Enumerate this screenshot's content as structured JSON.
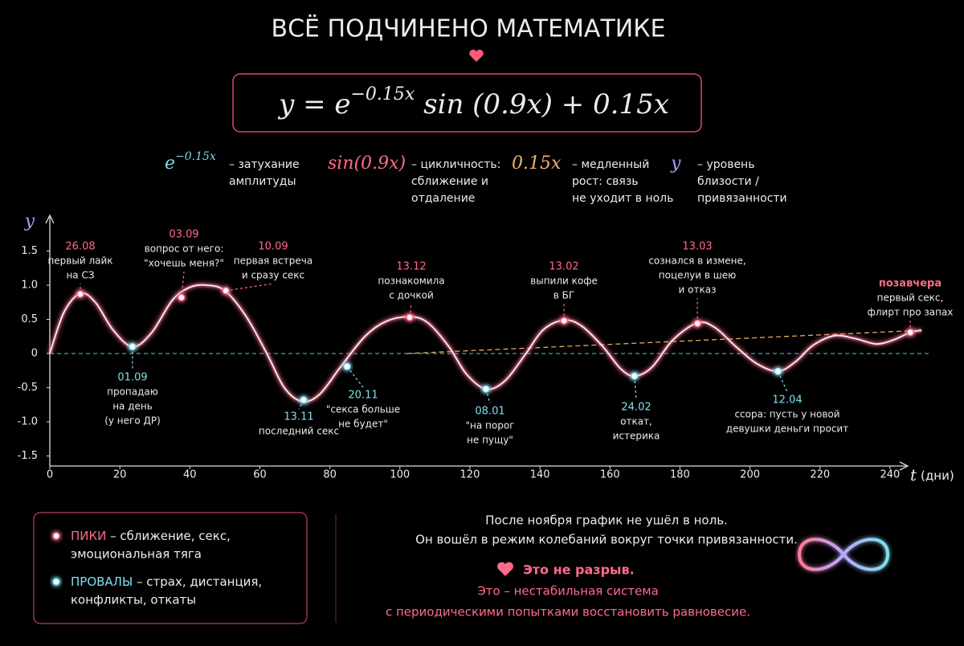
{
  "header": {
    "title": "ВСЁ ПОДЧИНЕНО МАТЕМАТИКЕ",
    "formula": {
      "lhs": "y = e",
      "exponent": "−0.15x",
      "rhs": " sin (0.9x) + 0.15x"
    }
  },
  "terms": [
    {
      "term": "e",
      "exponent": "−0.15x",
      "color": "#7fd8e6",
      "lines": [
        "– затухание",
        "амплитуды"
      ]
    },
    {
      "term": "sin(0.9x)",
      "color": "#ff6b8a",
      "lines": [
        "– цикличность:",
        "сближение и",
        "отдаление"
      ]
    },
    {
      "term": "0.15x",
      "color": "#f0b070",
      "lines": [
        "– медленный",
        "рост: связь",
        "не уходит в ноль"
      ]
    },
    {
      "term": "y",
      "color": "#a99cff",
      "lines": [
        "– уровень",
        "близости /",
        "привязанности"
      ]
    }
  ],
  "chart_data": {
    "type": "line",
    "y_label": "y",
    "x_label": "t",
    "x_unit": "(дни)",
    "xlim": [
      0,
      250
    ],
    "ylim": [
      -1.6,
      1.7
    ],
    "xticks": [
      0,
      20,
      40,
      60,
      80,
      100,
      120,
      140,
      160,
      180,
      200,
      220,
      240
    ],
    "yticks": [
      -1.5,
      {
        "value": -1,
        "label": "-1.0"
      },
      -0.5,
      0,
      0.5,
      {
        "value": 1,
        "label": "1.0"
      },
      1.5
    ],
    "series": [
      {
        "name": "y",
        "color": "#ff6f8f",
        "x": [
          0,
          4,
          8.7,
          13,
          18,
          23.6,
          29,
          35,
          40,
          45,
          50,
          56,
          62,
          67,
          72,
          77,
          83,
          90,
          96,
          102.8,
          108,
          114,
          119,
          124.6,
          130,
          136,
          141,
          146.9,
          152,
          158,
          163,
          167,
          172,
          178,
          185,
          190,
          196,
          202,
          208,
          213,
          218,
          224,
          230,
          236,
          241,
          245.8,
          249
        ],
        "values": [
          0,
          0.6,
          0.88,
          0.75,
          0.35,
          0.1,
          0.3,
          0.78,
          0.97,
          1.0,
          0.92,
          0.55,
          0.0,
          -0.5,
          -0.7,
          -0.6,
          -0.2,
          0.25,
          0.47,
          0.54,
          0.45,
          0.1,
          -0.3,
          -0.52,
          -0.4,
          0.0,
          0.35,
          0.49,
          0.4,
          0.1,
          -0.22,
          -0.33,
          -0.2,
          0.2,
          0.45,
          0.38,
          0.1,
          -0.15,
          -0.26,
          -0.12,
          0.12,
          0.26,
          0.22,
          0.14,
          0.2,
          0.31,
          0.34
        ]
      }
    ],
    "baseline": {
      "y": 0,
      "color": "#5fc8d8"
    },
    "trend": {
      "x": [
        102,
        249
      ],
      "y": [
        0,
        0.34
      ],
      "color": "#e8a860"
    },
    "events": [
      {
        "date": "26.08",
        "lines": [
          "первый лайк",
          "на СЗ"
        ],
        "x": 8.7,
        "y": 0.87,
        "color": "#ff6b8a"
      },
      {
        "date": "01.09",
        "lines": [
          "пропадаю",
          "на день",
          "(у него ДР)"
        ],
        "x": 23.6,
        "y": 0.1,
        "color": "#7ee0ee"
      },
      {
        "date": "03.09",
        "lines": [
          "вопрос от него:",
          "\"хочешь меня?\""
        ],
        "x": 37.6,
        "y": 0.82,
        "color": "#ff6b8a"
      },
      {
        "date": "10.09",
        "lines": [
          "первая встреча",
          "и сразу секс"
        ],
        "x": 50.3,
        "y": 0.92,
        "color": "#ff6b8a"
      },
      {
        "date": "13.11",
        "lines": [
          "последний секс"
        ],
        "x": 72.5,
        "y": -0.68,
        "color": "#7ee0ee"
      },
      {
        "date": "20.11",
        "lines": [
          "\"секса больше",
          "не будет\""
        ],
        "x": 84.9,
        "y": -0.19,
        "color": "#7ee0ee"
      },
      {
        "date": "13.12",
        "lines": [
          "познакомила",
          "с дочкой"
        ],
        "x": 102.8,
        "y": 0.53,
        "color": "#ff6b8a"
      },
      {
        "date": "08.01",
        "lines": [
          "\"на порог",
          "не пущу\""
        ],
        "x": 124.6,
        "y": -0.52,
        "color": "#7ee0ee"
      },
      {
        "date": "13.02",
        "lines": [
          "выпили кофе",
          "в БГ"
        ],
        "x": 146.9,
        "y": 0.48,
        "color": "#ff6b8a"
      },
      {
        "date": "24.02",
        "lines": [
          "откат,",
          "истерика"
        ],
        "x": 167,
        "y": -0.33,
        "color": "#7ee0ee"
      },
      {
        "date": "13.03",
        "lines": [
          "сознался в измене,",
          "поцелуи в шею",
          "и отказ"
        ],
        "x": 185,
        "y": 0.44,
        "color": "#ff6b8a"
      },
      {
        "date": "12.04",
        "lines": [
          "ссора: пусть у новой",
          "девушки деньги просит"
        ],
        "x": 208,
        "y": -0.26,
        "color": "#7ee0ee"
      },
      {
        "date": "позавчера",
        "lines": [
          "первый секс,",
          "флирт про запах"
        ],
        "x": 245.8,
        "y": 0.31,
        "color": "#ff6b8a"
      }
    ]
  },
  "legend": [
    {
      "name": "ПИКИ",
      "desc": " – сближение, секс,",
      "line2": "эмоциональная тяга",
      "color": "#ff6b8a"
    },
    {
      "name": "ПРОВАЛЫ",
      "desc": " – страх, дистанция,",
      "line2": "конфликты, откаты",
      "color": "#7ee0ee"
    }
  ],
  "conclusion": {
    "lines": [
      "После ноября график не ушёл в ноль.",
      "Он вошёл в режим колебаний вокруг точки привязанности."
    ],
    "accent": "Это не разрыв.",
    "accent_lines": [
      "Это – нестабильная система",
      "с периодическими попытками восстановить равновесие."
    ]
  }
}
